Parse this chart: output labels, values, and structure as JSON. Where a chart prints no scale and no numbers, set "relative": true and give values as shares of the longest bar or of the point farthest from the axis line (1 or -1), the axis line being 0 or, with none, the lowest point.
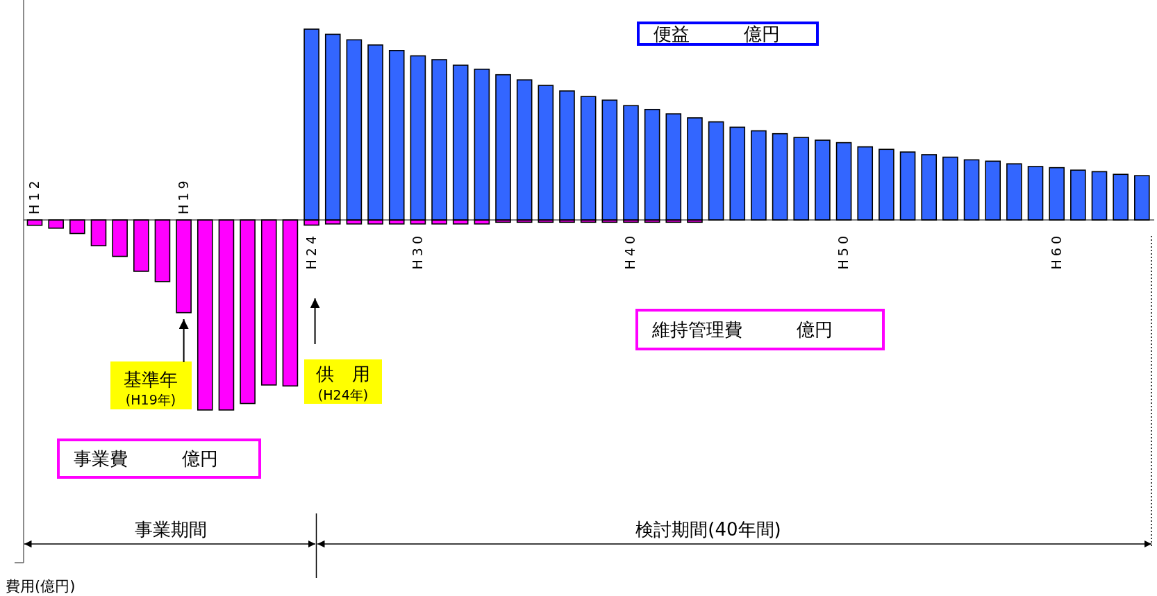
{
  "chart_data": {
    "type": "bar",
    "relative": true,
    "categories": [
      "H12",
      null,
      null,
      null,
      null,
      null,
      null,
      "H19",
      null,
      null,
      null,
      null,
      null,
      "H24",
      null,
      null,
      null,
      null,
      "H30",
      null,
      null,
      null,
      null,
      null,
      null,
      null,
      null,
      null,
      "H40",
      null,
      null,
      null,
      null,
      null,
      null,
      null,
      null,
      null,
      "H50",
      null,
      null,
      null,
      null,
      null,
      null,
      null,
      null,
      null,
      "H60",
      null,
      null,
      null,
      null
    ],
    "series": [
      {
        "color": "#ff00ff",
        "values": [
          -0.028,
          -0.043,
          -0.071,
          -0.135,
          -0.191,
          -0.269,
          -0.323,
          -0.486,
          -0.996,
          -0.996,
          -0.962,
          -0.865,
          -0.87,
          -0.027,
          -0.021,
          -0.021,
          -0.021,
          -0.021,
          -0.021,
          -0.021,
          -0.021,
          -0.021,
          -0.012,
          -0.012,
          -0.012,
          -0.012,
          -0.012,
          -0.012,
          -0.012,
          -0.012,
          -0.012,
          -0.012,
          null,
          null,
          null,
          null,
          null,
          null,
          null,
          null,
          null,
          null,
          null,
          null,
          null,
          null,
          null,
          null,
          null,
          null,
          null,
          null,
          null
        ]
      },
      {
        "color": "#3366ff",
        "values": [
          null,
          null,
          null,
          null,
          null,
          null,
          null,
          null,
          null,
          null,
          null,
          null,
          null,
          1.0,
          0.973,
          0.944,
          0.917,
          0.888,
          0.86,
          0.84,
          0.811,
          0.79,
          0.761,
          0.734,
          0.705,
          0.676,
          0.647,
          0.628,
          0.599,
          0.579,
          0.556,
          0.535,
          0.514,
          0.486,
          0.467,
          0.452,
          0.432,
          0.418,
          0.405,
          0.383,
          0.37,
          0.356,
          0.342,
          0.329,
          0.315,
          0.308,
          0.294,
          0.28,
          0.274,
          0.261,
          0.253,
          0.239,
          0.232
        ]
      }
    ],
    "annotations": [
      "便益　　　億円",
      "維持管理費　　　億円",
      "事業費　　　億円",
      "基準年",
      "(H19年)",
      "供　用",
      "(H24年)",
      "事業期間",
      "検討期間(40年間)",
      "費用(億円)"
    ]
  }
}
